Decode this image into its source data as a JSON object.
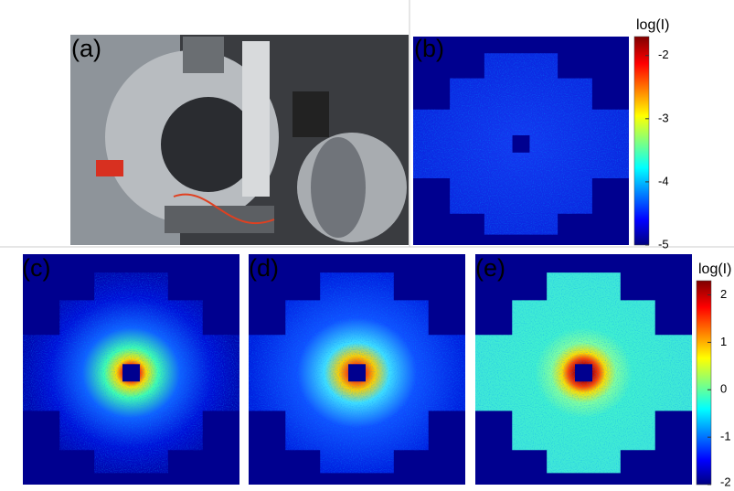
{
  "panels": [
    {
      "label": "(a)"
    },
    {
      "label": "(b)"
    },
    {
      "label": "(c)"
    },
    {
      "label": "(d)"
    },
    {
      "label": "(e)"
    }
  ],
  "colorbars": [
    {
      "title": "log(I)",
      "lim": [
        -5,
        -1.7
      ],
      "ticks": [
        -2,
        -3,
        -4,
        -5
      ]
    },
    {
      "title": "log(I)",
      "lim": [
        -2,
        2.3
      ],
      "ticks": [
        2,
        1,
        0,
        -1,
        -2
      ]
    }
  ]
}
